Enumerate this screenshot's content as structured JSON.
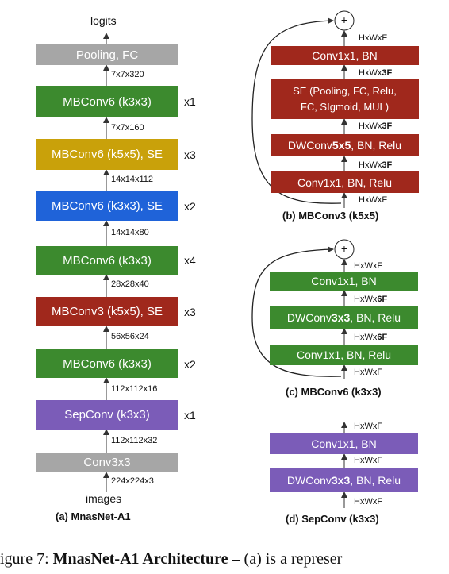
{
  "colors": {
    "gray": "#a6a6a6",
    "green": "#3c8a2e",
    "yellow": "#c9a10a",
    "blue": "#1f63d9",
    "red": "#a0281c",
    "purple": "#7b5cb8"
  },
  "a": {
    "top_label": "logits",
    "bottom_label": "images",
    "caption": "(a) MnasNet-A1",
    "blocks": [
      {
        "text": "Pooling, FC",
        "mult": ""
      },
      {
        "text": "MBConv6 (k3x3)",
        "mult": "x1"
      },
      {
        "text": "MBConv6 (k5x5), SE",
        "mult": "x3"
      },
      {
        "text": "MBConv6 (k3x3), SE",
        "mult": "x2"
      },
      {
        "text": "MBConv6 (k3x3)",
        "mult": "x4"
      },
      {
        "text": "MBConv3 (k5x5), SE",
        "mult": "x3"
      },
      {
        "text": "MBConv6 (k3x3)",
        "mult": "x2"
      },
      {
        "text": "SepConv (k3x3)",
        "mult": "x1"
      },
      {
        "text": "Conv3x3",
        "mult": ""
      }
    ],
    "shapes": [
      "7x7x320",
      "7x7x160",
      "14x14x112",
      "14x14x80",
      "28x28x40",
      "56x56x24",
      "112x112x16",
      "112x112x32",
      "224x224x3"
    ]
  },
  "b": {
    "caption": "(b) MBConv3 (k5x5)",
    "plus": "+",
    "blocks": [
      "Conv1x1, BN",
      "SE (Pooling, FC, Relu,",
      "FC, SIgmoid, MUL)",
      "DWConv",
      "5x5",
      ", BN, Relu",
      "Conv1x1, BN, Relu"
    ],
    "dims": {
      "base": "HxWx",
      "f": "F",
      "f3": "3F",
      "full": "HxWxF"
    }
  },
  "c": {
    "caption": "(c) MBConv6 (k3x3)",
    "plus": "+",
    "blocks": [
      "Conv1x1, BN",
      "DWConv",
      "3x3",
      ", BN, Relu",
      "Conv1x1, BN, Relu"
    ],
    "dims": {
      "base": "HxWx",
      "f6": "6F",
      "full": "HxWxF"
    }
  },
  "d": {
    "caption": "(d) SepConv (k3x3)",
    "blocks": [
      "Conv1x1, BN",
      "DWConv",
      "3x3",
      ", BN, Relu"
    ],
    "dims": {
      "full": "HxWxF"
    }
  },
  "figure_caption": {
    "prefix": "igure 7: ",
    "title": "MnasNet-A1 Architecture",
    "rest": " – (a) is a represer"
  }
}
